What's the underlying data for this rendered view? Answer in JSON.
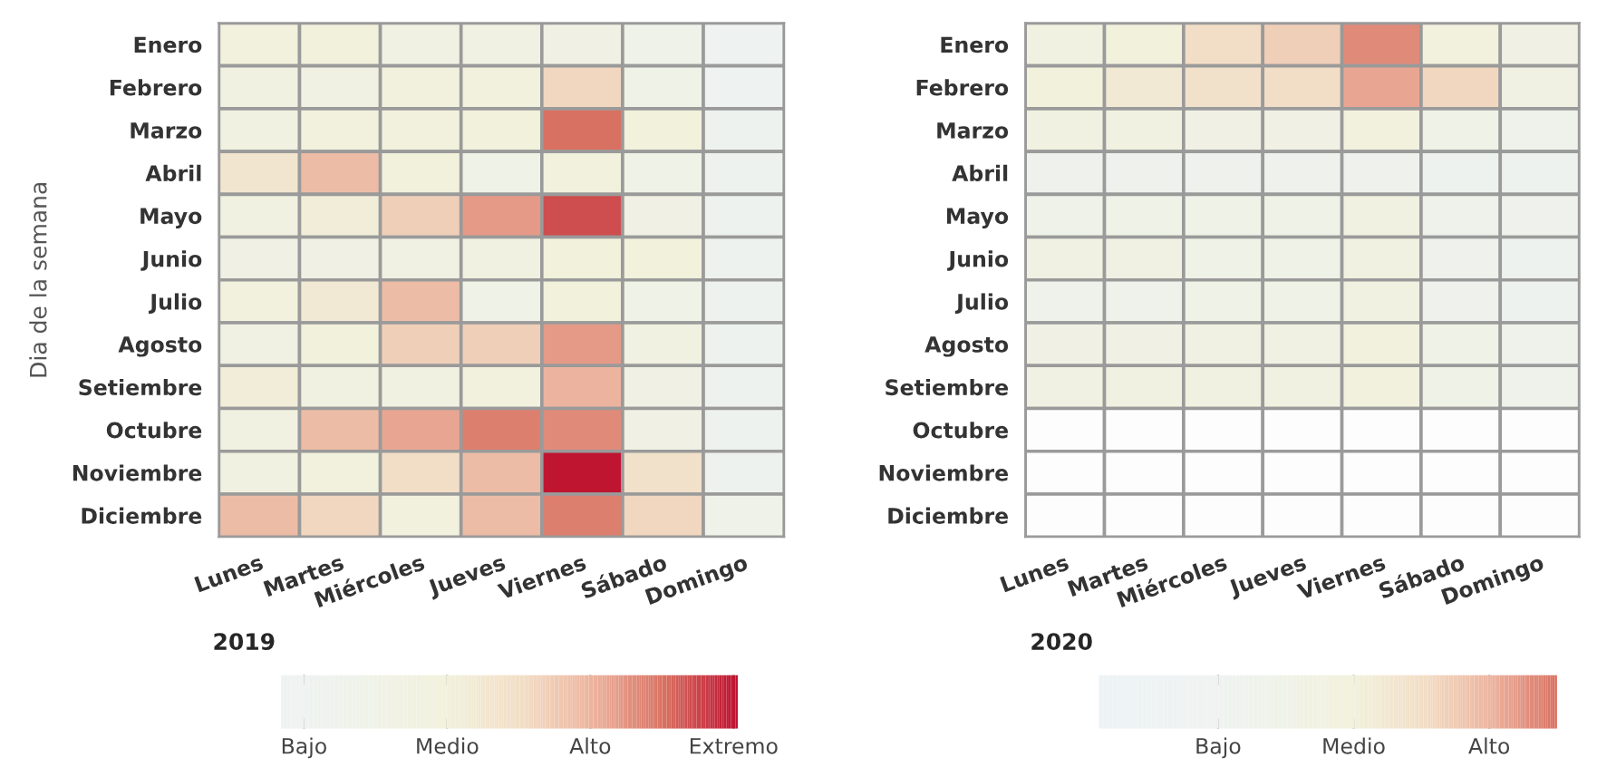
{
  "chart_data": [
    {
      "type": "heatmap",
      "clabel": "2019",
      "ylabel": "Dia de la semana",
      "categories": [
        "Lunes",
        "Martes",
        "Miércoles",
        "Jueves",
        "Viernes",
        "Sábado",
        "Domingo"
      ],
      "y_categories": [
        "Enero",
        "Febrero",
        "Marzo",
        "Abril",
        "Mayo",
        "Junio",
        "Julio",
        "Agosto",
        "Setiembre",
        "Octubre",
        "Noviembre",
        "Diciembre"
      ],
      "cells": [
        [
          1.9,
          2.0,
          1.7,
          1.7,
          1.6,
          1.4,
          1.0
        ],
        [
          1.8,
          1.7,
          1.9,
          1.9,
          2.6,
          1.5,
          1.0
        ],
        [
          1.8,
          1.9,
          1.9,
          2.0,
          3.5,
          2.0,
          1.1
        ],
        [
          2.3,
          2.9,
          2.0,
          1.5,
          1.9,
          1.5,
          1.1
        ],
        [
          1.8,
          2.1,
          2.7,
          3.2,
          3.7,
          1.6,
          1.1
        ],
        [
          1.6,
          1.6,
          1.7,
          1.8,
          2.0,
          2.0,
          1.1
        ],
        [
          1.9,
          2.2,
          2.9,
          1.5,
          2.0,
          1.5,
          1.1
        ],
        [
          1.7,
          2.0,
          2.7,
          2.7,
          3.2,
          1.8,
          1.1
        ],
        [
          2.1,
          1.8,
          1.8,
          1.9,
          3.0,
          1.6,
          1.1
        ],
        [
          1.8,
          2.9,
          3.1,
          3.4,
          3.3,
          1.6,
          1.1
        ],
        [
          1.8,
          1.9,
          2.5,
          2.9,
          4.0,
          2.4,
          1.1
        ],
        [
          2.9,
          2.6,
          1.9,
          2.9,
          3.4,
          2.6,
          1.4
        ]
      ],
      "clim": [
        0.84,
        4.03
      ],
      "cticks": [
        {
          "value": 1,
          "label": "Bajo"
        },
        {
          "value": 2,
          "label": "Medio"
        },
        {
          "value": 3,
          "label": "Alto"
        },
        {
          "value": 4,
          "label": "Extremo"
        }
      ]
    },
    {
      "type": "heatmap",
      "clabel": "2020",
      "categories": [
        "Lunes",
        "Martes",
        "Miércoles",
        "Jueves",
        "Viernes",
        "Sábado",
        "Domingo"
      ],
      "y_categories": [
        "Enero",
        "Febrero",
        "Marzo",
        "Abril",
        "Mayo",
        "Junio",
        "Julio",
        "Agosto",
        "Setiembre",
        "Octubre",
        "Noviembre",
        "Diciembre"
      ],
      "cells": [
        [
          1.8,
          2.0,
          2.5,
          2.7,
          3.3,
          1.9,
          1.6
        ],
        [
          2.0,
          2.2,
          2.4,
          2.5,
          3.1,
          2.6,
          1.7
        ],
        [
          1.8,
          1.8,
          1.6,
          1.6,
          1.9,
          1.5,
          1.3
        ],
        [
          1.2,
          1.2,
          1.2,
          1.2,
          1.2,
          1.1,
          1.1
        ],
        [
          1.4,
          1.5,
          1.5,
          1.5,
          1.8,
          1.3,
          1.2
        ],
        [
          1.7,
          1.7,
          1.5,
          1.5,
          1.8,
          1.2,
          1.1
        ],
        [
          1.3,
          1.3,
          1.5,
          1.5,
          1.8,
          1.2,
          1.1
        ],
        [
          1.6,
          1.6,
          1.7,
          1.7,
          1.9,
          1.5,
          1.3
        ],
        [
          1.7,
          1.8,
          1.8,
          1.8,
          1.9,
          1.5,
          1.3
        ],
        [
          null,
          null,
          null,
          null,
          null,
          null,
          null
        ],
        [
          null,
          null,
          null,
          null,
          null,
          null,
          null
        ],
        [
          null,
          null,
          null,
          null,
          null,
          null,
          null
        ]
      ],
      "clim": [
        0.12,
        3.5
      ],
      "cticks": [
        {
          "value": 1,
          "label": "Bajo"
        },
        {
          "value": 2,
          "label": "Medio"
        },
        {
          "value": 3,
          "label": "Alto"
        }
      ]
    }
  ]
}
